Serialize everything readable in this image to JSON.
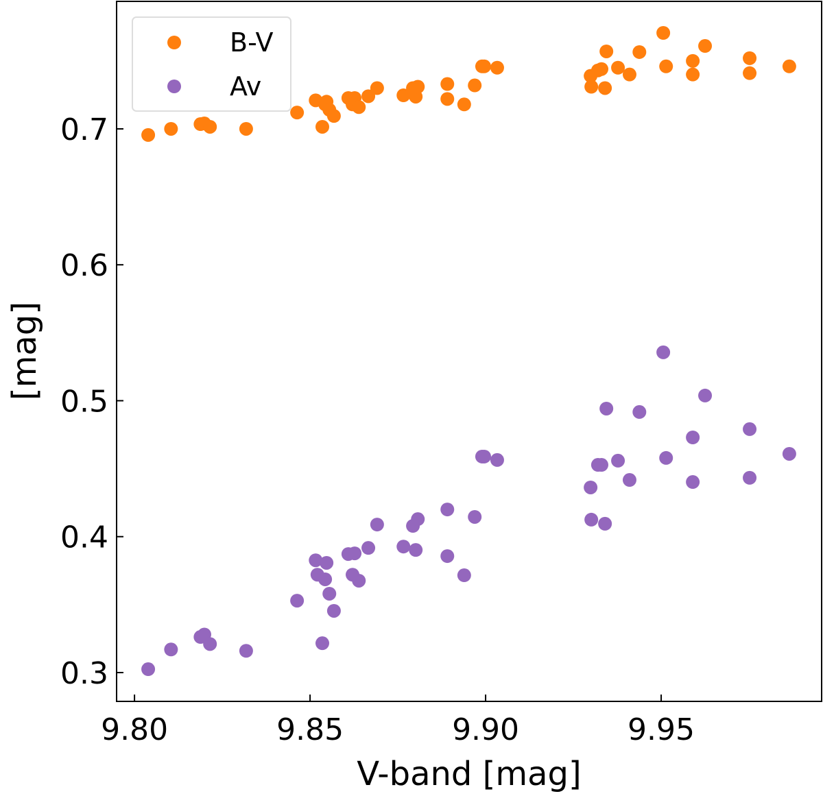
{
  "chart_data": {
    "type": "scatter",
    "title": "",
    "xlabel": "V-band [mag]",
    "ylabel": "[mag]",
    "xlim": [
      9.7949,
      9.9957
    ],
    "ylim": [
      0.2788,
      0.7938
    ],
    "xticks": [
      "9.80",
      "9.85",
      "9.90",
      "9.95"
    ],
    "xtick_values": [
      9.8,
      9.85,
      9.9,
      9.95
    ],
    "yticks": [
      "0.3",
      "0.4",
      "0.5",
      "0.6",
      "0.7"
    ],
    "ytick_values": [
      0.3,
      0.4,
      0.5,
      0.6,
      0.7
    ],
    "grid": false,
    "legend_position": "top-left",
    "series": [
      {
        "name": "B-V",
        "color": "#ff7f0e",
        "x": [
          9.8039,
          9.8104,
          9.8188,
          9.8199,
          9.8215,
          9.8318,
          9.8463,
          9.8516,
          9.8535,
          9.8547,
          9.8543,
          9.8555,
          9.8568,
          9.8609,
          9.8627,
          9.8621,
          9.8639,
          9.8666,
          9.8691,
          9.8766,
          9.8793,
          9.8801,
          9.8807,
          9.8891,
          9.8891,
          9.8939,
          9.8969,
          9.899,
          9.8996,
          9.9033,
          9.9299,
          9.9301,
          9.932,
          9.933,
          9.934,
          9.9344,
          9.9377,
          9.941,
          9.9438,
          9.9506,
          9.9514,
          9.959,
          9.959,
          9.9625,
          9.9752,
          9.9752,
          9.9865
        ],
        "y": [
          0.6955,
          0.7,
          0.7035,
          0.704,
          0.7015,
          0.7,
          0.712,
          0.721,
          0.7015,
          0.72,
          0.718,
          0.714,
          0.7095,
          0.7227,
          0.7227,
          0.718,
          0.716,
          0.724,
          0.73,
          0.7247,
          0.73,
          0.7237,
          0.731,
          0.733,
          0.722,
          0.718,
          0.732,
          0.746,
          0.746,
          0.745,
          0.739,
          0.731,
          0.743,
          0.744,
          0.73,
          0.757,
          0.745,
          0.74,
          0.7565,
          0.7706,
          0.746,
          0.75,
          0.74,
          0.761,
          0.752,
          0.741,
          0.746
        ]
      },
      {
        "name": "Av",
        "color": "#9467bd",
        "x": [
          9.8039,
          9.8104,
          9.8188,
          9.8199,
          9.8215,
          9.8318,
          9.8463,
          9.8516,
          9.8521,
          9.8535,
          9.8543,
          9.8547,
          9.8555,
          9.8568,
          9.8609,
          9.8627,
          9.8621,
          9.8639,
          9.8666,
          9.8691,
          9.8766,
          9.8793,
          9.8801,
          9.8807,
          9.8891,
          9.8891,
          9.8939,
          9.8969,
          9.899,
          9.8996,
          9.9033,
          9.9299,
          9.9301,
          9.932,
          9.933,
          9.934,
          9.9344,
          9.9377,
          9.941,
          9.9438,
          9.9506,
          9.9514,
          9.959,
          9.959,
          9.9625,
          9.9752,
          9.9752,
          9.9865
        ],
        "y": [
          0.3025,
          0.317,
          0.3262,
          0.328,
          0.321,
          0.316,
          0.3529,
          0.3826,
          0.372,
          0.3216,
          0.3686,
          0.3807,
          0.358,
          0.3454,
          0.3872,
          0.3877,
          0.372,
          0.3676,
          0.3917,
          0.4089,
          0.3927,
          0.4079,
          0.3902,
          0.4129,
          0.42,
          0.3857,
          0.3716,
          0.4145,
          0.4589,
          0.4589,
          0.4564,
          0.4362,
          0.4125,
          0.4528,
          0.4528,
          0.4095,
          0.4942,
          0.4559,
          0.4417,
          0.4917,
          0.5356,
          0.4579,
          0.473,
          0.4402,
          0.5038,
          0.4791,
          0.4433,
          0.4609
        ]
      }
    ]
  }
}
